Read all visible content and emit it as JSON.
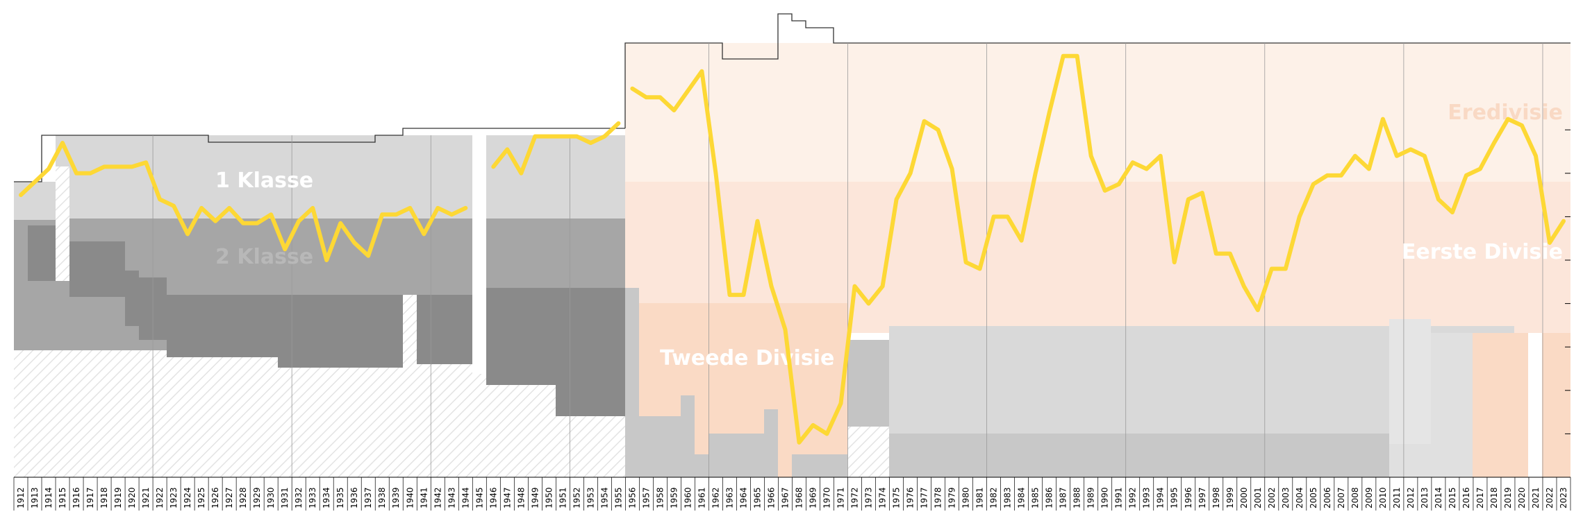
{
  "chart_data": {
    "type": "line",
    "x_start": 1912,
    "x_end": 2023,
    "ylim": [
      0,
      10
    ],
    "y_inverted": true,
    "tiers": [
      {
        "name": "Eredivisie",
        "from": 1956,
        "to": 2023,
        "color": "#fdf1e8"
      },
      {
        "name": "Eerste Divisie",
        "from": 1956,
        "to": 2023,
        "color": "#fce6da"
      },
      {
        "name": "Tweede Divisie",
        "from": 1956,
        "to": 1971,
        "color": "#fadac5"
      },
      {
        "name": "1 Klasse",
        "from": 1912,
        "to": 1955,
        "color": "#d8d8d8"
      },
      {
        "name": "2 Klasse",
        "from": 1912,
        "to": 1955,
        "color": "#a6a6a6"
      }
    ],
    "tier_labels": [
      "1 Klasse",
      "2 Klasse",
      "Eredivisie",
      "Eerste Divisie",
      "Tweede Divisie"
    ],
    "tier_label_colors": {
      "klasse": "#ffffff",
      "eredivisie": "#f9d9c4",
      "eerste": "#ffffff",
      "tweede": "#ffffff"
    },
    "series": [
      {
        "color": "#fdd835",
        "segments": [
          {
            "years": [
              1912,
              1913,
              1914,
              1915,
              1916,
              1917,
              1918,
              1919,
              1920,
              1921,
              1922,
              1923,
              1924,
              1925,
              1926,
              1927,
              1928,
              1929,
              1930,
              1931,
              1932,
              1933,
              1934,
              1935,
              1936,
              1937,
              1938,
              1939,
              1940,
              1941,
              1942,
              1943,
              1944
            ],
            "values": [
              3.5,
              3.2,
              2.9,
              2.3,
              3.0,
              3.0,
              2.85,
              2.85,
              2.85,
              2.75,
              3.6,
              3.75,
              4.4,
              3.8,
              4.1,
              3.8,
              4.15,
              4.15,
              3.95,
              4.75,
              4.1,
              3.8,
              5.0,
              4.15,
              4.6,
              4.9,
              3.95,
              3.95,
              3.8,
              4.4,
              3.8,
              3.95,
              3.8
            ]
          },
          {
            "years": [
              1946,
              1947,
              1948,
              1949,
              1950,
              1951,
              1952,
              1953,
              1954,
              1955
            ],
            "values": [
              2.85,
              2.45,
              3.0,
              2.15,
              2.15,
              2.15,
              2.15,
              2.3,
              2.15,
              1.85
            ]
          },
          {
            "years": [
              1956,
              1957,
              1958,
              1959,
              1960,
              1961,
              1962,
              1963,
              1964,
              1965,
              1966,
              1967,
              1968,
              1969,
              1970,
              1971,
              1972,
              1973,
              1974,
              1975,
              1976,
              1977,
              1978,
              1979,
              1980,
              1981,
              1982,
              1983,
              1984,
              1985,
              1986,
              1987,
              1988,
              1989,
              1990,
              1991,
              1992,
              1993,
              1994,
              1995,
              1996,
              1997,
              1998,
              1999,
              2000,
              2001,
              2002,
              2003,
              2004,
              2005,
              2006,
              2007,
              2008,
              2009,
              2010,
              2011,
              2012,
              2013,
              2014,
              2015,
              2016,
              2017,
              2018,
              2019,
              2020,
              2021,
              2022,
              2023
            ],
            "values": [
              1.05,
              1.25,
              1.25,
              1.55,
              1.1,
              0.65,
              3.0,
              5.8,
              5.8,
              4.1,
              5.6,
              6.6,
              9.2,
              8.8,
              9.0,
              8.3,
              5.6,
              6.0,
              5.6,
              3.6,
              3.0,
              1.8,
              2.0,
              2.9,
              5.05,
              5.2,
              4.0,
              4.0,
              4.55,
              3.0,
              1.6,
              0.3,
              0.3,
              2.6,
              3.4,
              3.25,
              2.75,
              2.9,
              2.6,
              5.05,
              3.6,
              3.45,
              4.85,
              4.85,
              5.6,
              6.15,
              5.2,
              5.2,
              4.0,
              3.25,
              3.05,
              3.05,
              2.6,
              2.9,
              1.75,
              2.6,
              2.45,
              2.6,
              3.6,
              3.9,
              3.05,
              2.9,
              2.3,
              1.75,
              1.9,
              2.6,
              4.6,
              4.1
            ]
          }
        ]
      }
    ],
    "years_labels": [
      "1912",
      "1913",
      "1914",
      "1915",
      "1916",
      "1917",
      "1918",
      "1919",
      "1920",
      "1921",
      "1922",
      "1923",
      "1924",
      "1925",
      "1926",
      "1927",
      "1928",
      "1929",
      "1930",
      "1931",
      "1932",
      "1933",
      "1934",
      "1935",
      "1936",
      "1937",
      "1938",
      "1939",
      "1940",
      "1941",
      "1942",
      "1943",
      "1944",
      "1945",
      "1946",
      "1947",
      "1948",
      "1949",
      "1950",
      "1951",
      "1952",
      "1953",
      "1954",
      "1955",
      "1956",
      "1957",
      "1958",
      "1959",
      "1960",
      "1961",
      "1962",
      "1963",
      "1964",
      "1965",
      "1966",
      "1967",
      "1968",
      "1969",
      "1970",
      "1971",
      "1972",
      "1973",
      "1974",
      "1975",
      "1976",
      "1977",
      "1978",
      "1979",
      "1980",
      "1981",
      "1982",
      "1983",
      "1984",
      "1985",
      "1986",
      "1987",
      "1988",
      "1989",
      "1990",
      "1991",
      "1992",
      "1993",
      "1994",
      "1995",
      "1996",
      "1997",
      "1998",
      "1999",
      "2000",
      "2001",
      "2002",
      "2003",
      "2004",
      "2005",
      "2006",
      "2007",
      "2008",
      "2009",
      "2010",
      "2011",
      "2012",
      "2013",
      "2014",
      "2015",
      "2016",
      "2017",
      "2018",
      "2019",
      "2020",
      "2021",
      "2022",
      "2023"
    ]
  }
}
